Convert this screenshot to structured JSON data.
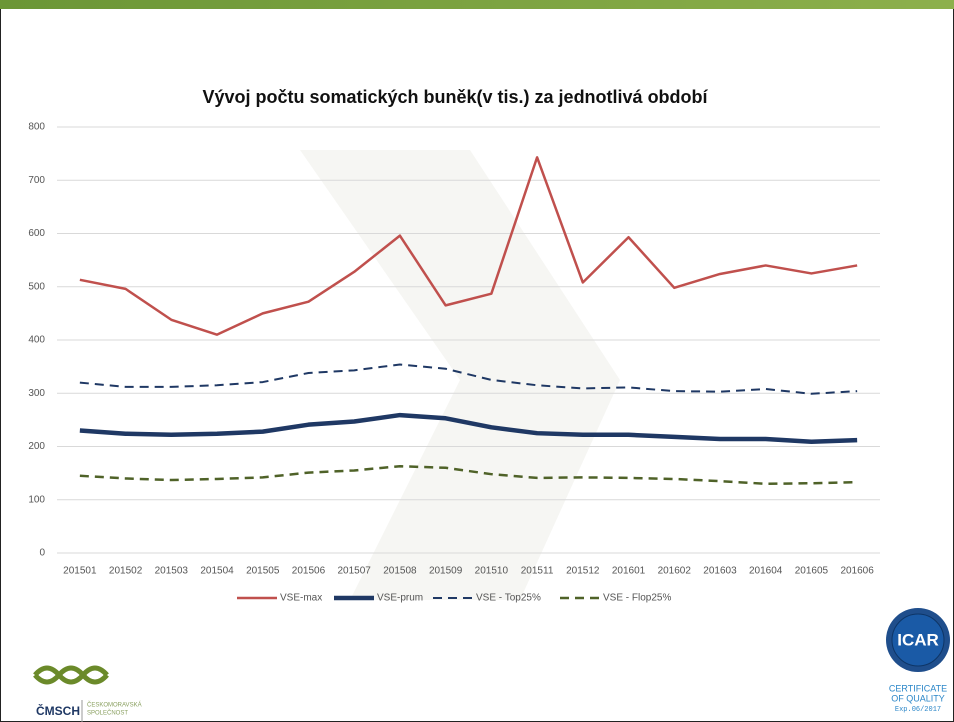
{
  "chart_data": {
    "type": "line",
    "title": "Vývoj počtu somatických buněk(v tis.) za jednotlivá období",
    "categories": [
      "201501",
      "201502",
      "201503",
      "201504",
      "201505",
      "201506",
      "201507",
      "201508",
      "201509",
      "201510",
      "201511",
      "201512",
      "201601",
      "201602",
      "201603",
      "201604",
      "201605",
      "201606"
    ],
    "series": [
      {
        "name": "VSE-max",
        "color": "#c0504d",
        "width": 2.5,
        "dash": false,
        "values": [
          513,
          496,
          438,
          410,
          450,
          472,
          528,
          596,
          465,
          487,
          743,
          508,
          593,
          498,
          524,
          540,
          525,
          540
        ]
      },
      {
        "name": "VSE-prum",
        "color": "#1f3864",
        "width": 4.5,
        "dash": false,
        "values": [
          230,
          224,
          222,
          224,
          228,
          241,
          247,
          259,
          253,
          236,
          225,
          222,
          222,
          218,
          214,
          214,
          209,
          212
        ]
      },
      {
        "name": "VSE - Top25%",
        "color": "#1f3864",
        "width": 2,
        "dash": true,
        "values": [
          320,
          312,
          312,
          315,
          321,
          338,
          343,
          354,
          346,
          325,
          315,
          309,
          311,
          304,
          303,
          308,
          299,
          304
        ]
      },
      {
        "name": "VSE - Flop25%",
        "color": "#4f6228",
        "width": 2.5,
        "dash": true,
        "values": [
          145,
          140,
          137,
          139,
          142,
          151,
          155,
          163,
          160,
          148,
          141,
          142,
          141,
          139,
          135,
          130,
          131,
          133
        ]
      }
    ],
    "ylim": [
      0,
      800
    ],
    "yticks": [
      0,
      100,
      200,
      300,
      400,
      500,
      600,
      700,
      800
    ],
    "grid": true,
    "legend": "bottom"
  },
  "logos": {
    "left": {
      "name": "ČMSCH",
      "lines": [
        "ČESKOMORAVSKÁ",
        "SPOLEČNOST"
      ]
    },
    "right": {
      "name": "ICAR",
      "lines": [
        "CERTIFICATE",
        "OF QUALITY",
        "Exp.06/2017"
      ]
    }
  }
}
